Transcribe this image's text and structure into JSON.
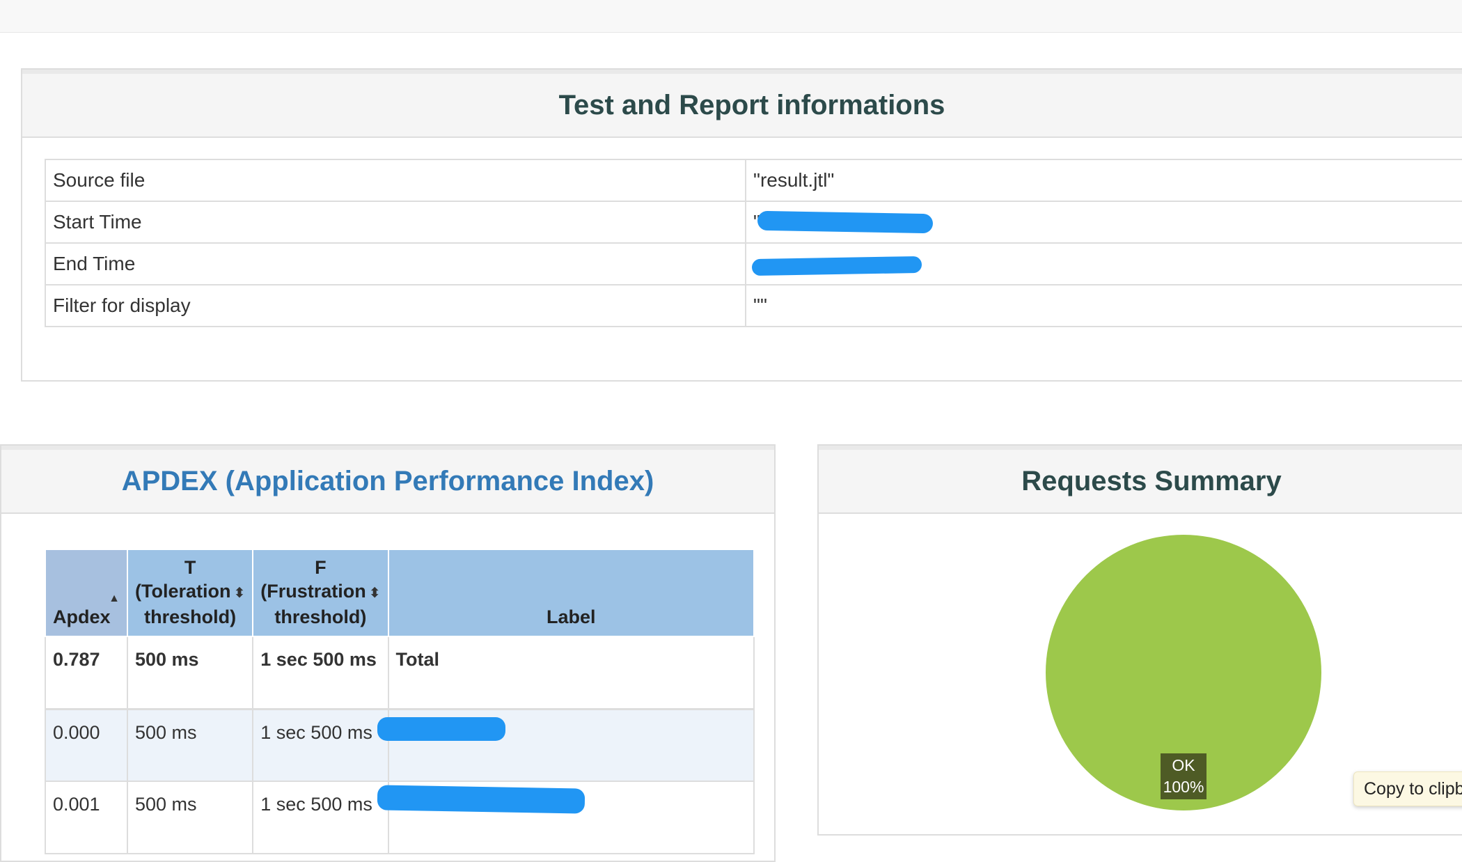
{
  "info_panel": {
    "title": "Test and Report informations",
    "rows": [
      {
        "key": "Source file",
        "value": "\"result.jtl\""
      },
      {
        "key": "Start Time",
        "value": "\""
      },
      {
        "key": "End Time",
        "value": ""
      },
      {
        "key": "Filter for display",
        "value": "\"\""
      }
    ]
  },
  "apdex_panel": {
    "title": "APDEX (Application Performance Index)",
    "columns": {
      "apdex": "Apdex",
      "t_line1": "T",
      "t_line2": "(Toleration",
      "t_line3": "threshold)",
      "f_line1": "F",
      "f_line2": "(Frustration",
      "f_line3": "threshold)",
      "label": "Label"
    },
    "rows": [
      {
        "apdex": "0.787",
        "t": "500 ms",
        "f": "1 sec 500 ms",
        "label": "Total"
      },
      {
        "apdex": "0.000",
        "t": "500 ms",
        "f": "1 sec 500 ms",
        "label": ""
      },
      {
        "apdex": "0.001",
        "t": "500 ms",
        "f": "1 sec 500 ms",
        "label": ""
      }
    ]
  },
  "requests_panel": {
    "title": "Requests Summary",
    "pie": {
      "label_line1": "OK",
      "label_line2": "100%",
      "ok_share_percent": 100,
      "color": "#9dc84b"
    }
  },
  "copy_button": {
    "label": "Copy to clipboard"
  }
}
